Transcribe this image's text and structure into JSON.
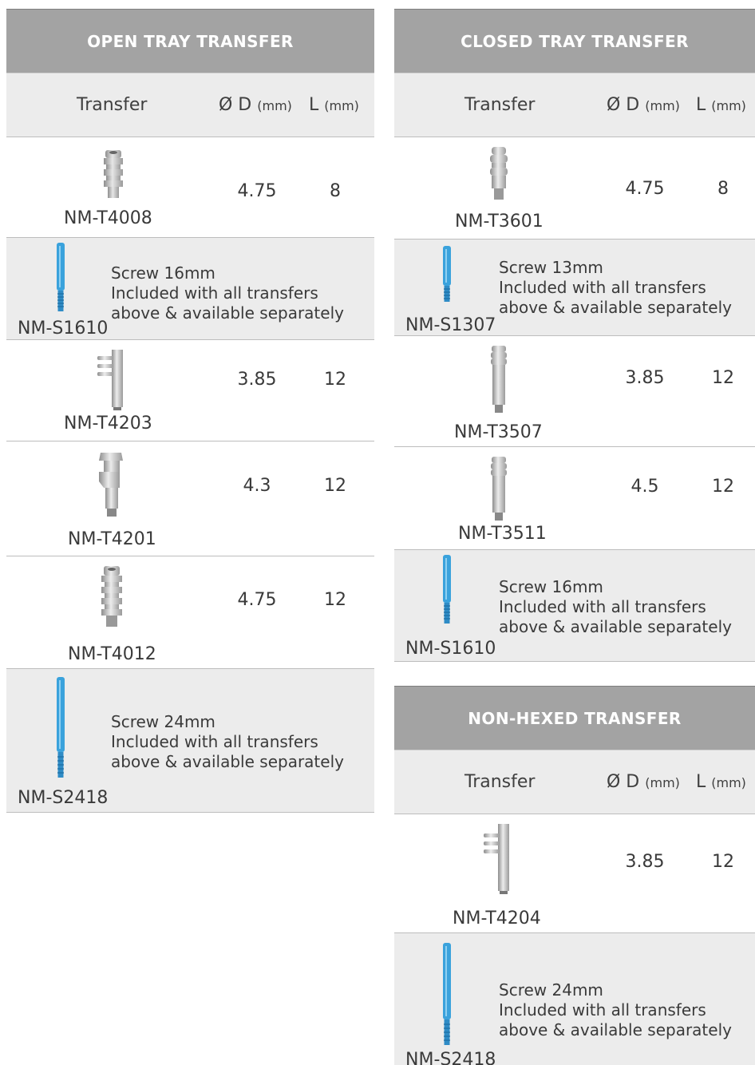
{
  "colors": {
    "header_bg": "#a3a3a3",
    "subheader_bg": "#ececec",
    "screw_blue": "#3aa2dc",
    "metal": "#b8b8b8"
  },
  "columns": {
    "transfer": "Transfer",
    "diameter": "Ø D",
    "diameter_unit": "(mm)",
    "length": "L",
    "length_unit": "(mm)"
  },
  "open_tray": {
    "title": "OPEN TRAY TRANSFER",
    "rows": [
      {
        "kind": "transfer",
        "icon": "open-transfer-icon",
        "code": "NM-T4008",
        "d": "4.75",
        "l": "8"
      },
      {
        "kind": "screw",
        "icon": "screw-icon",
        "code": "NM-S1610",
        "line1": "Screw 16mm",
        "line2": "Included with all transfers",
        "line3": "above & available separately"
      },
      {
        "kind": "transfer",
        "icon": "open-transfer-icon",
        "code": "NM-T4203",
        "d": "3.85",
        "l": "12"
      },
      {
        "kind": "transfer",
        "icon": "open-transfer-icon",
        "code": "NM-T4201",
        "d": "4.3",
        "l": "12"
      },
      {
        "kind": "transfer",
        "icon": "open-transfer-icon",
        "code": "NM-T4012",
        "d": "4.75",
        "l": "12"
      },
      {
        "kind": "screw",
        "icon": "screw-icon",
        "code": "NM-S2418",
        "line1": "Screw 24mm",
        "line2": "Included with all transfers",
        "line3": "above & available separately"
      }
    ]
  },
  "closed_tray": {
    "title": "CLOSED TRAY TRANSFER",
    "rows": [
      {
        "kind": "transfer",
        "icon": "closed-transfer-icon",
        "code": "NM-T3601",
        "d": "4.75",
        "l": "8"
      },
      {
        "kind": "screw",
        "icon": "screw-icon",
        "code": "NM-S1307",
        "line1": "Screw 13mm",
        "line2": "Included with all transfers",
        "line3": "above & available separately"
      },
      {
        "kind": "transfer",
        "icon": "closed-transfer-icon",
        "code": "NM-T3507",
        "d": "3.85",
        "l": "12"
      },
      {
        "kind": "transfer",
        "icon": "closed-transfer-icon",
        "code": "NM-T3511",
        "d": "4.5",
        "l": "12"
      },
      {
        "kind": "screw",
        "icon": "screw-icon",
        "code": "NM-S1610",
        "line1": "Screw 16mm",
        "line2": "Included with all transfers",
        "line3": "above & available separately"
      }
    ]
  },
  "non_hexed": {
    "title": "NON-HEXED TRANSFER",
    "rows": [
      {
        "kind": "transfer",
        "icon": "non-hexed-transfer-icon",
        "code": "NM-T4204",
        "d": "3.85",
        "l": "12"
      },
      {
        "kind": "screw",
        "icon": "screw-icon",
        "code": "NM-S2418",
        "line1": "Screw 24mm",
        "line2": "Included with all transfers",
        "line3": "above & available separately"
      }
    ]
  }
}
